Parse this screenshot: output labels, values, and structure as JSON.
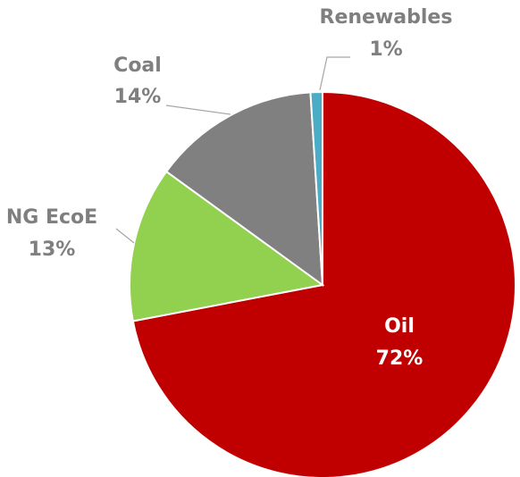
{
  "chart_data": {
    "type": "pie",
    "title": "",
    "start_angle_deg": 0,
    "direction": "clockwise",
    "slices": [
      {
        "name": "Oil",
        "value": 72,
        "label": "Oil",
        "percent_label": "72%",
        "color": "#c00000",
        "label_color": "#ffffff"
      },
      {
        "name": "NG EcoE",
        "value": 13,
        "label": "NG EcoE",
        "percent_label": "13%",
        "color": "#92d050",
        "label_color": "#7f7f7f"
      },
      {
        "name": "Coal",
        "value": 14,
        "label": "Coal",
        "percent_label": "14%",
        "color": "#808080",
        "label_color": "#7f7f7f"
      },
      {
        "name": "Renewables",
        "value": 1,
        "label": "Renewables",
        "percent_label": "1%",
        "color": "#4bacc6",
        "label_color": "#7f7f7f"
      }
    ],
    "legend": "none"
  }
}
